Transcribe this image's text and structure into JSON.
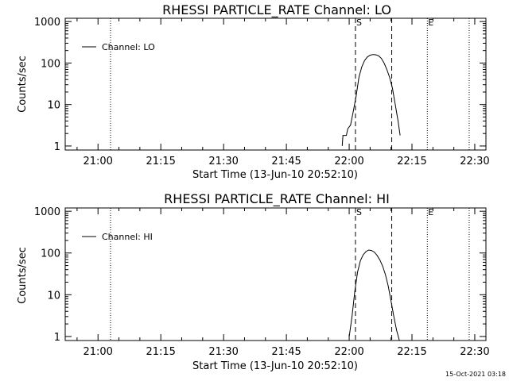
{
  "footer": {
    "timestamp": "15-Oct-2021 03:18"
  },
  "chart_data": [
    {
      "type": "line",
      "title": "RHESSI PARTICLE_RATE Channel: LO",
      "xlabel": "Start Time (13-Jun-10 20:52:10)",
      "ylabel": "Counts/sec",
      "ylog": true,
      "xlim": [
        "20:52:10",
        "22:32:40"
      ],
      "ylim": [
        0.8,
        1200
      ],
      "x_ticks": [
        "21:00",
        "21:15",
        "21:30",
        "21:45",
        "22:00",
        "22:15",
        "22:30"
      ],
      "y_ticks": [
        "1",
        "10",
        "100",
        "1000"
      ],
      "legend": {
        "position": "top-left",
        "entries": [
          "Channel: LO"
        ]
      },
      "markers": [
        {
          "label": "",
          "time": "21:03:00",
          "style": "dotted"
        },
        {
          "label": "S",
          "time": "22:01:30",
          "style": "dashed"
        },
        {
          "label": "",
          "time": "22:10:10",
          "style": "dashed"
        },
        {
          "label": "E",
          "time": "22:18:40",
          "style": "dotted"
        },
        {
          "label": "",
          "time": "22:28:40",
          "style": "dotted"
        }
      ],
      "series": [
        {
          "name": "Channel: LO",
          "x": [
            "21:58:20",
            "21:58:30",
            "21:59:20",
            "21:59:40",
            "22:00:20",
            "22:01:00",
            "22:01:40",
            "22:02:20",
            "22:03:00",
            "22:03:40",
            "22:04:20",
            "22:05:00",
            "22:05:40",
            "22:06:20",
            "22:07:00",
            "22:07:40",
            "22:08:20",
            "22:09:00",
            "22:09:40",
            "22:10:20",
            "22:11:00",
            "22:11:40",
            "22:12:10"
          ],
          "y": [
            1,
            1.8,
            1.8,
            2.6,
            3.2,
            7,
            16,
            45,
            80,
            115,
            140,
            155,
            160,
            158,
            150,
            130,
            100,
            70,
            45,
            25,
            10,
            4,
            1.8
          ]
        }
      ]
    },
    {
      "type": "line",
      "title": "RHESSI PARTICLE_RATE Channel: HI",
      "xlabel": "Start Time (13-Jun-10 20:52:10)",
      "ylabel": "Counts/sec",
      "ylog": true,
      "xlim": [
        "20:52:10",
        "22:32:40"
      ],
      "ylim": [
        0.8,
        1200
      ],
      "x_ticks": [
        "21:00",
        "21:15",
        "21:30",
        "21:45",
        "22:00",
        "22:15",
        "22:30"
      ],
      "y_ticks": [
        "1",
        "10",
        "100",
        "1000"
      ],
      "legend": {
        "position": "top-left",
        "entries": [
          "Channel: HI"
        ]
      },
      "markers": [
        {
          "label": "",
          "time": "21:03:00",
          "style": "dotted"
        },
        {
          "label": "S",
          "time": "22:01:30",
          "style": "dashed"
        },
        {
          "label": "",
          "time": "22:10:10",
          "style": "dashed"
        },
        {
          "label": "E",
          "time": "22:18:40",
          "style": "dotted"
        },
        {
          "label": "",
          "time": "22:28:40",
          "style": "dotted"
        }
      ],
      "series": [
        {
          "name": "Channel: HI",
          "x": [
            "22:00:00",
            "22:00:40",
            "22:01:20",
            "22:02:00",
            "22:02:40",
            "22:03:20",
            "22:04:00",
            "22:04:40",
            "22:05:20",
            "22:06:00",
            "22:06:40",
            "22:07:20",
            "22:08:00",
            "22:08:40",
            "22:09:20",
            "22:10:00",
            "22:10:40",
            "22:11:20",
            "22:12:00"
          ],
          "y": [
            1,
            3,
            12,
            35,
            65,
            90,
            108,
            118,
            115,
            105,
            88,
            68,
            48,
            30,
            16,
            7,
            3,
            1.4,
            0.8
          ]
        }
      ]
    }
  ]
}
